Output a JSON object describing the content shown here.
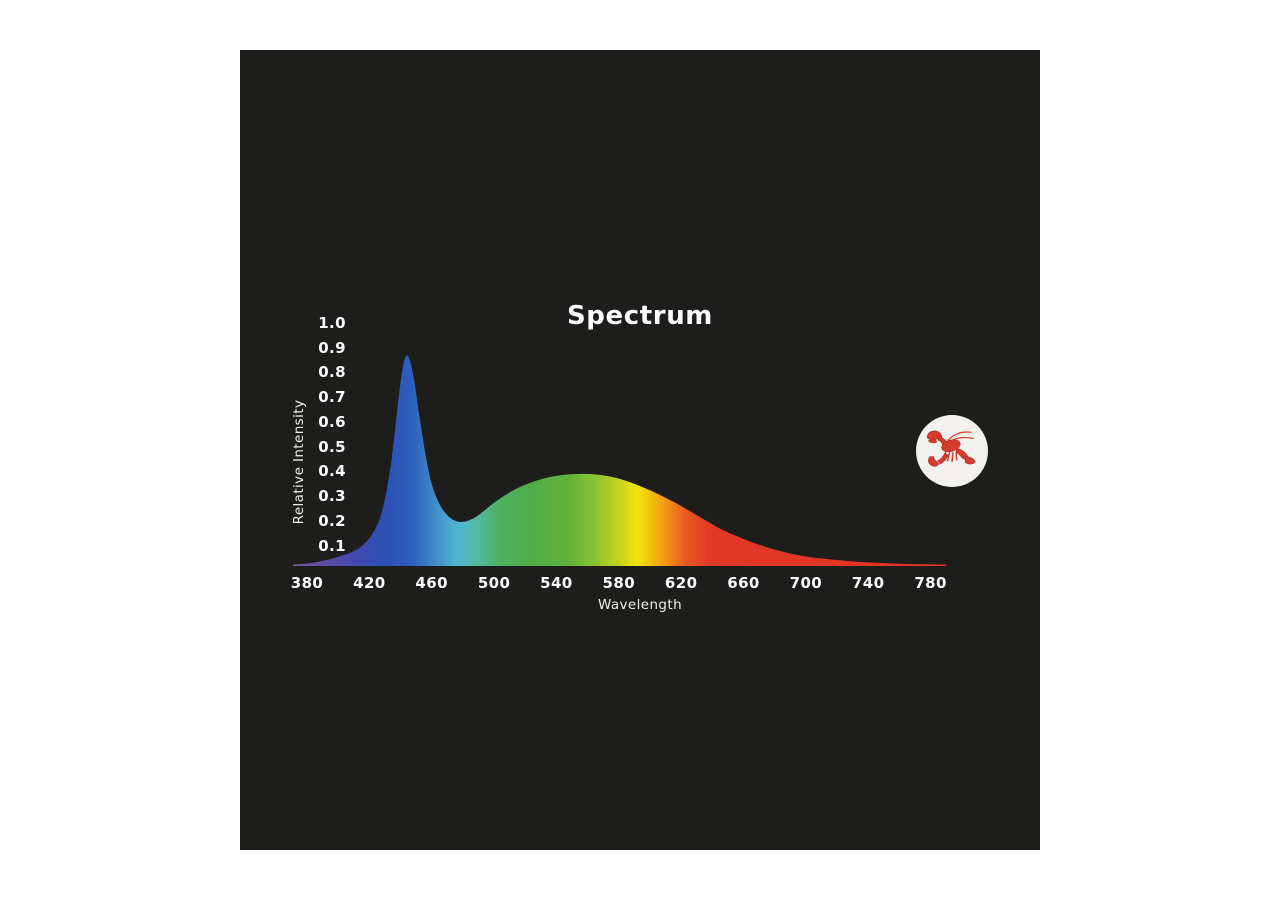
{
  "page": {
    "background_color": "#ffffff",
    "panel_color": "#1d1d1b"
  },
  "chart": {
    "title": "Spectrum",
    "y_axis": {
      "label": "Relative Intensity",
      "tick_labels": [
        "1.0",
        "0.9",
        "0.8",
        "0.7",
        "0.6",
        "0.5",
        "0.4",
        "0.3",
        "0.2",
        "0.1"
      ]
    },
    "x_axis": {
      "label": "Wavelength",
      "tick_labels": [
        "380",
        "420",
        "460",
        "500",
        "540",
        "580",
        "620",
        "660",
        "700",
        "740",
        "780"
      ]
    }
  },
  "logo": {
    "icon": "lobster-icon",
    "circle_color": "#f2f1ee",
    "lobster_color": "#d63a2a",
    "lobster_dark_color": "#a82a1c"
  },
  "chart_data": {
    "type": "area",
    "title": "Spectrum",
    "xlabel": "Wavelength",
    "ylabel": "Relative Intensity",
    "xlim": [
      371,
      790
    ],
    "ylim": [
      0,
      1.0
    ],
    "x_ticks": [
      380,
      420,
      460,
      500,
      540,
      580,
      620,
      660,
      700,
      740,
      780
    ],
    "y_ticks": [
      1.0,
      0.9,
      0.8,
      0.7,
      0.6,
      0.5,
      0.4,
      0.3,
      0.2,
      0.1
    ],
    "grid": false,
    "legend": false,
    "series": [
      {
        "name": "relative-intensity-spectrum",
        "x": [
          371,
          380,
          388,
          396,
          404,
          410,
          416,
          421,
          426,
          430,
          434,
          437,
          440,
          442,
          444,
          446,
          449,
          452,
          456,
          460,
          465,
          470,
          475,
          480,
          486,
          492,
          500,
          508,
          516,
          525,
          535,
          545,
          555,
          565,
          575,
          585,
          595,
          605,
          615,
          625,
          635,
          645,
          655,
          665,
          675,
          685,
          695,
          705,
          715,
          725,
          735,
          745,
          755,
          765,
          775,
          785,
          790
        ],
        "y": [
          0.005,
          0.01,
          0.018,
          0.03,
          0.045,
          0.06,
          0.085,
          0.12,
          0.18,
          0.27,
          0.42,
          0.58,
          0.74,
          0.82,
          0.85,
          0.83,
          0.74,
          0.61,
          0.45,
          0.33,
          0.25,
          0.205,
          0.183,
          0.178,
          0.19,
          0.215,
          0.255,
          0.29,
          0.317,
          0.34,
          0.358,
          0.368,
          0.372,
          0.37,
          0.36,
          0.343,
          0.319,
          0.291,
          0.259,
          0.224,
          0.187,
          0.151,
          0.122,
          0.097,
          0.076,
          0.058,
          0.044,
          0.034,
          0.027,
          0.021,
          0.016,
          0.013,
          0.01,
          0.008,
          0.007,
          0.006,
          0.005
        ]
      }
    ],
    "annotations": {
      "blue_peak": {
        "wavelength_nm": 444,
        "intensity": 0.85
      },
      "dip": {
        "wavelength_nm": 478,
        "intensity": 0.18
      },
      "broad_hump": {
        "wavelength_nm": 555,
        "intensity": 0.37
      }
    },
    "gradient_stops": [
      {
        "nm": 371,
        "color": "#7a55a2"
      },
      {
        "nm": 392,
        "color": "#5a4ba6"
      },
      {
        "nm": 412,
        "color": "#3e4bae"
      },
      {
        "nm": 432,
        "color": "#2c50b4"
      },
      {
        "nm": 448,
        "color": "#2e60bd"
      },
      {
        "nm": 462,
        "color": "#3f8cc8"
      },
      {
        "nm": 476,
        "color": "#4fb5d3"
      },
      {
        "nm": 489,
        "color": "#52ba9f"
      },
      {
        "nm": 504,
        "color": "#4cb161"
      },
      {
        "nm": 524,
        "color": "#4fad47"
      },
      {
        "nm": 548,
        "color": "#61b23b"
      },
      {
        "nm": 566,
        "color": "#8fc32f"
      },
      {
        "nm": 582,
        "color": "#cdd518"
      },
      {
        "nm": 592,
        "color": "#f2e20a"
      },
      {
        "nm": 602,
        "color": "#f4bb0e"
      },
      {
        "nm": 612,
        "color": "#f18c18"
      },
      {
        "nm": 622,
        "color": "#eb5c20"
      },
      {
        "nm": 638,
        "color": "#e23827"
      },
      {
        "nm": 790,
        "color": "#e23224"
      }
    ]
  }
}
